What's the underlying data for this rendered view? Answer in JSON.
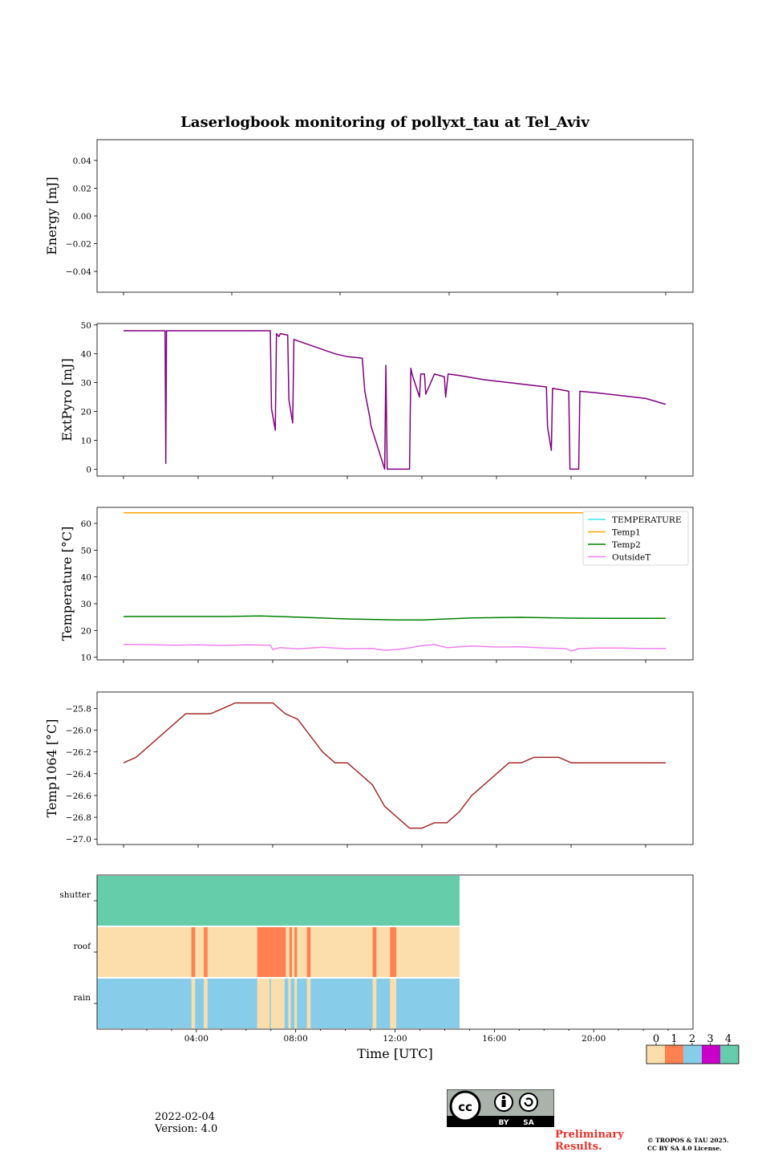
{
  "title": "Laserlogbook monitoring of pollyxt_tau at Tel_Aviv",
  "footer": {
    "date": "2022-02-04",
    "version": "Version: 4.0",
    "preliminary": [
      "Preliminary",
      "Results."
    ],
    "copyright": [
      "© TROPOS & TAU 2025.",
      "CC BY SA 4.0 License."
    ],
    "license_badge": {
      "by": "BY",
      "sa": "SA"
    }
  },
  "colors": {
    "extpyro": "#800080",
    "temp1064": "#a52a2a",
    "TEMPERATURE": "#40e0f0",
    "Temp1": "#ffa500",
    "Temp2": "#008000",
    "OutsideT": "#ee82ee",
    "flag_levels": [
      "#fcdeac",
      "#ff8051",
      "#87cdea",
      "#c800c8",
      "#65cdaa"
    ]
  },
  "chart_data": [
    {
      "id": "energy",
      "type": "line",
      "ylabel": "Energy [mJ]",
      "ylim": [
        -0.055,
        0.055
      ],
      "yticks": [
        0.04,
        0.02,
        0.0,
        -0.02,
        -0.04
      ],
      "ytick_labels": [
        "0.04",
        "0.02",
        "0.00",
        "−0.02",
        "−0.04"
      ],
      "series": []
    },
    {
      "id": "extpyro",
      "type": "line",
      "ylabel": "ExtPyro [mJ]",
      "ylim": [
        -2.4,
        50.5
      ],
      "yticks": [
        0,
        10,
        20,
        30,
        40,
        50
      ],
      "ytick_labels": [
        "0",
        "10",
        "20",
        "30",
        "40",
        "50"
      ],
      "series": [
        {
          "x": [
            1.0,
            2.67,
            2.7,
            2.73,
            2.76,
            4.0,
            6.0,
            6.9,
            6.95,
            7.1,
            7.15,
            7.25,
            7.3,
            7.6,
            7.65,
            7.8,
            7.85,
            8.0,
            8.5,
            9.0,
            9.5,
            10.0,
            10.6,
            10.7,
            10.9,
            10.95,
            11.5,
            11.55,
            11.6,
            11.65,
            11.7,
            12.5,
            12.55,
            12.6,
            12.9,
            12.95,
            13.1,
            13.15,
            13.5,
            13.9,
            13.95,
            14.05,
            14.5,
            15.5,
            16.5,
            17.5,
            18.0,
            18.05,
            18.2,
            18.25,
            18.6,
            18.9,
            18.95,
            19.3,
            19.35,
            20.0,
            21.0,
            22.0,
            22.8
          ],
          "y": [
            48,
            48,
            2,
            48,
            48,
            48,
            48,
            48,
            21,
            13.5,
            47,
            46,
            47,
            46.5,
            24,
            16,
            45,
            44.5,
            43,
            41.5,
            40,
            39,
            38.5,
            27,
            18,
            15,
            0,
            36,
            0,
            0,
            0,
            0,
            35,
            33,
            25,
            33,
            33,
            26,
            33,
            32,
            25,
            33,
            32.5,
            31,
            30,
            29,
            28.5,
            14.5,
            6.5,
            28,
            27.5,
            27,
            0,
            0,
            27,
            26.5,
            25.5,
            24.5,
            22.5
          ]
        }
      ]
    },
    {
      "id": "temperature",
      "type": "line",
      "ylabel": "Temperature [°C]",
      "ylim": [
        9.0,
        66.0
      ],
      "yticks": [
        10,
        20,
        30,
        40,
        50,
        60
      ],
      "ytick_labels": [
        "10",
        "20",
        "30",
        "40",
        "50",
        "60"
      ],
      "legend": "top-right",
      "series": [
        {
          "name": "TEMPERATURE",
          "x": [],
          "y": []
        },
        {
          "name": "Temp1",
          "x": [
            1.0,
            22.8
          ],
          "y": [
            64,
            64
          ]
        },
        {
          "name": "Temp2",
          "x": [
            1.0,
            3.0,
            5.0,
            6.5,
            8.0,
            10.0,
            12.0,
            13.0,
            14.0,
            15.0,
            17.0,
            19.0,
            21.0,
            22.8
          ],
          "y": [
            25.2,
            25.2,
            25.2,
            25.4,
            25.0,
            24.3,
            23.9,
            23.9,
            24.3,
            24.7,
            24.9,
            24.6,
            24.5,
            24.5
          ]
        },
        {
          "name": "OutsideT",
          "x": [
            1.0,
            2.0,
            3.0,
            4.0,
            5.0,
            6.0,
            6.9,
            7.0,
            7.3,
            8.0,
            9.0,
            10.0,
            11.0,
            11.5,
            12.0,
            12.5,
            13.0,
            13.5,
            14.0,
            15.0,
            16.0,
            17.0,
            18.0,
            18.8,
            19.0,
            19.3,
            20.0,
            21.0,
            22.0,
            22.8
          ],
          "y": [
            14.8,
            14.7,
            14.5,
            14.6,
            14.4,
            14.6,
            14.5,
            12.9,
            13.6,
            13.1,
            13.7,
            13.1,
            13.3,
            12.6,
            12.9,
            13.5,
            14.3,
            14.7,
            13.6,
            14.2,
            13.8,
            13.9,
            13.4,
            13.2,
            12.3,
            13.2,
            13.4,
            13.4,
            13.2,
            13.3
          ]
        }
      ]
    },
    {
      "id": "temp1064",
      "type": "line",
      "ylabel": "Temp1064 [°C]",
      "ylim": [
        -27.05,
        -25.65
      ],
      "yticks": [
        -25.8,
        -26.0,
        -26.2,
        -26.4,
        -26.6,
        -26.8,
        -27.0
      ],
      "ytick_labels": [
        "−25.8",
        "−26.0",
        "−26.2",
        "−26.4",
        "−26.6",
        "−26.8",
        "−27.0"
      ],
      "series": [
        {
          "x": [
            1.0,
            1.5,
            2.0,
            2.5,
            3.0,
            3.5,
            4.0,
            4.5,
            5.0,
            5.5,
            6.0,
            6.5,
            7.0,
            7.5,
            8.0,
            8.5,
            9.0,
            9.5,
            10.0,
            10.5,
            11.0,
            11.5,
            12.0,
            12.5,
            13.0,
            13.5,
            14.0,
            14.5,
            15.0,
            15.5,
            16.0,
            16.5,
            17.0,
            17.5,
            18.0,
            18.5,
            19.0,
            19.5,
            20.0,
            20.5,
            21.0,
            21.5,
            22.0,
            22.5,
            22.8
          ],
          "y": [
            -26.3,
            -26.25,
            -26.15,
            -26.05,
            -25.95,
            -25.85,
            -25.85,
            -25.85,
            -25.8,
            -25.75,
            -25.75,
            -25.75,
            -25.75,
            -25.85,
            -25.9,
            -26.05,
            -26.2,
            -26.3,
            -26.3,
            -26.4,
            -26.5,
            -26.7,
            -26.8,
            -26.9,
            -26.9,
            -26.85,
            -26.85,
            -26.75,
            -26.6,
            -26.5,
            -26.4,
            -26.3,
            -26.3,
            -26.25,
            -26.25,
            -26.25,
            -26.3,
            -26.3,
            -26.3,
            -26.3,
            -26.3,
            -26.3,
            -26.3,
            -26.3,
            -26.3
          ]
        }
      ]
    },
    {
      "id": "flags",
      "type": "heatmap",
      "rows": [
        "shutter",
        "roof",
        "rain"
      ],
      "xlabel": "Time [UTC]",
      "xlim": [
        0,
        24
      ],
      "xticks": [
        "04:00",
        "08:00",
        "12:00",
        "16:00",
        "20:00"
      ],
      "xtick_values": [
        4,
        8,
        12,
        16,
        20
      ],
      "data_end": 14.6,
      "colorbar": {
        "ticks": [
          "0",
          "1",
          "2",
          "3",
          "4"
        ]
      },
      "segments": {
        "shutter": [
          {
            "from": 0,
            "to": 14.6,
            "level": 4
          }
        ],
        "roof": [
          {
            "from": 0,
            "to": 14.6,
            "level": 0
          },
          {
            "from": 3.8,
            "to": 3.95,
            "level": 1
          },
          {
            "from": 4.3,
            "to": 4.45,
            "level": 1
          },
          {
            "from": 6.45,
            "to": 7.6,
            "level": 1
          },
          {
            "from": 7.75,
            "to": 7.85,
            "level": 1
          },
          {
            "from": 7.95,
            "to": 8.05,
            "level": 1
          },
          {
            "from": 8.45,
            "to": 8.6,
            "level": 1
          },
          {
            "from": 11.1,
            "to": 11.25,
            "level": 1
          },
          {
            "from": 11.8,
            "to": 12.05,
            "level": 1
          }
        ],
        "rain": [
          {
            "from": 0,
            "to": 14.6,
            "level": 2
          },
          {
            "from": 3.8,
            "to": 3.95,
            "level": 0
          },
          {
            "from": 4.3,
            "to": 4.45,
            "level": 0
          },
          {
            "from": 6.45,
            "to": 6.95,
            "level": 0
          },
          {
            "from": 7.0,
            "to": 7.55,
            "level": 0
          },
          {
            "from": 7.7,
            "to": 7.8,
            "level": 0
          },
          {
            "from": 7.95,
            "to": 8.05,
            "level": 0
          },
          {
            "from": 8.45,
            "to": 8.6,
            "level": 0
          },
          {
            "from": 11.1,
            "to": 11.25,
            "level": 0
          },
          {
            "from": 11.8,
            "to": 12.05,
            "level": 0
          }
        ]
      }
    }
  ]
}
